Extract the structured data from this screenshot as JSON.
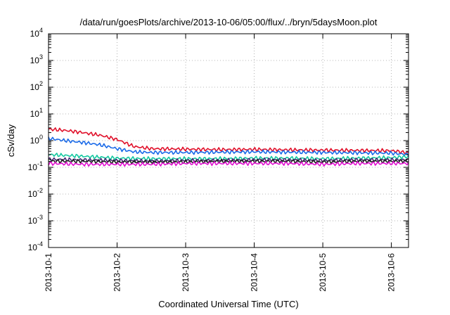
{
  "chart_data": {
    "type": "line",
    "title": "/data/run/goesPlots/archive/2013-10-06/05:00/flux/../bryn/5daysMoon.plot",
    "xlabel": "Coordinated Universal Time (UTC)",
    "ylabel": "cSv/day",
    "yscale": "log",
    "ylim": [
      0.0001,
      10000
    ],
    "xlim_days": [
      0,
      5.25
    ],
    "y_ticks": [
      {
        "base": "10",
        "exp": "-4",
        "value": 0.0001
      },
      {
        "base": "10",
        "exp": "-3",
        "value": 0.001
      },
      {
        "base": "10",
        "exp": "-2",
        "value": 0.01
      },
      {
        "base": "10",
        "exp": "-1",
        "value": 0.1
      },
      {
        "base": "10",
        "exp": "0",
        "value": 1
      },
      {
        "base": "10",
        "exp": "1",
        "value": 10
      },
      {
        "base": "10",
        "exp": "2",
        "value": 100
      },
      {
        "base": "10",
        "exp": "3",
        "value": 1000
      },
      {
        "base": "10",
        "exp": "4",
        "value": 10000
      }
    ],
    "x_ticks": [
      {
        "label": "2013-10-1",
        "day": 0
      },
      {
        "label": "2013-10-2",
        "day": 1
      },
      {
        "label": "2013-10-3",
        "day": 2
      },
      {
        "label": "2013-10-4",
        "day": 3
      },
      {
        "label": "2013-10-5",
        "day": 4
      },
      {
        "label": "2013-10-6",
        "day": 5
      }
    ],
    "grid": true,
    "legend": "none",
    "series": [
      {
        "color": "#e0102a",
        "x": [
          0,
          0.25,
          0.5,
          0.75,
          1.0,
          1.25,
          1.5,
          2.0,
          2.5,
          3.0,
          3.5,
          4.0,
          4.5,
          5.0,
          5.25
        ],
        "y": [
          2.7,
          2.4,
          2.0,
          1.6,
          1.1,
          0.6,
          0.5,
          0.48,
          0.46,
          0.47,
          0.45,
          0.44,
          0.43,
          0.42,
          0.35
        ]
      },
      {
        "color": "#1a6ae8",
        "x": [
          0,
          0.25,
          0.5,
          0.75,
          1.0,
          1.25,
          1.5,
          2.0,
          2.5,
          3.0,
          3.5,
          4.0,
          4.5,
          5.0,
          5.25
        ],
        "y": [
          1.2,
          1.0,
          0.85,
          0.7,
          0.5,
          0.38,
          0.36,
          0.36,
          0.37,
          0.38,
          0.37,
          0.36,
          0.35,
          0.34,
          0.3
        ]
      },
      {
        "color": "#14c8a0",
        "x": [
          0,
          0.5,
          1.0,
          1.5,
          2.0,
          2.5,
          3.0,
          3.5,
          4.0,
          4.5,
          5.0,
          5.25
        ],
        "y": [
          0.3,
          0.26,
          0.22,
          0.21,
          0.21,
          0.21,
          0.22,
          0.22,
          0.21,
          0.22,
          0.23,
          0.25
        ]
      },
      {
        "color": "#4a2a78",
        "x": [
          0,
          0.5,
          1.0,
          1.5,
          2.0,
          2.5,
          3.0,
          3.5,
          4.0,
          4.5,
          5.0,
          5.25
        ],
        "y": [
          0.2,
          0.19,
          0.18,
          0.17,
          0.18,
          0.18,
          0.19,
          0.19,
          0.18,
          0.19,
          0.19,
          0.19
        ]
      },
      {
        "color": "#202020",
        "x": [
          0,
          0.5,
          1.0,
          1.5,
          2.0,
          2.5,
          3.0,
          3.5,
          4.0,
          4.5,
          5.0,
          5.25
        ],
        "y": [
          0.17,
          0.17,
          0.16,
          0.16,
          0.16,
          0.17,
          0.17,
          0.17,
          0.16,
          0.17,
          0.17,
          0.17
        ]
      },
      {
        "color": "#e010d0",
        "x": [
          0,
          0.5,
          1.0,
          1.5,
          2.0,
          2.5,
          3.0,
          3.5,
          4.0,
          4.5,
          5.0,
          5.25
        ],
        "y": [
          0.14,
          0.13,
          0.13,
          0.13,
          0.14,
          0.14,
          0.14,
          0.14,
          0.13,
          0.14,
          0.14,
          0.14
        ]
      }
    ]
  }
}
